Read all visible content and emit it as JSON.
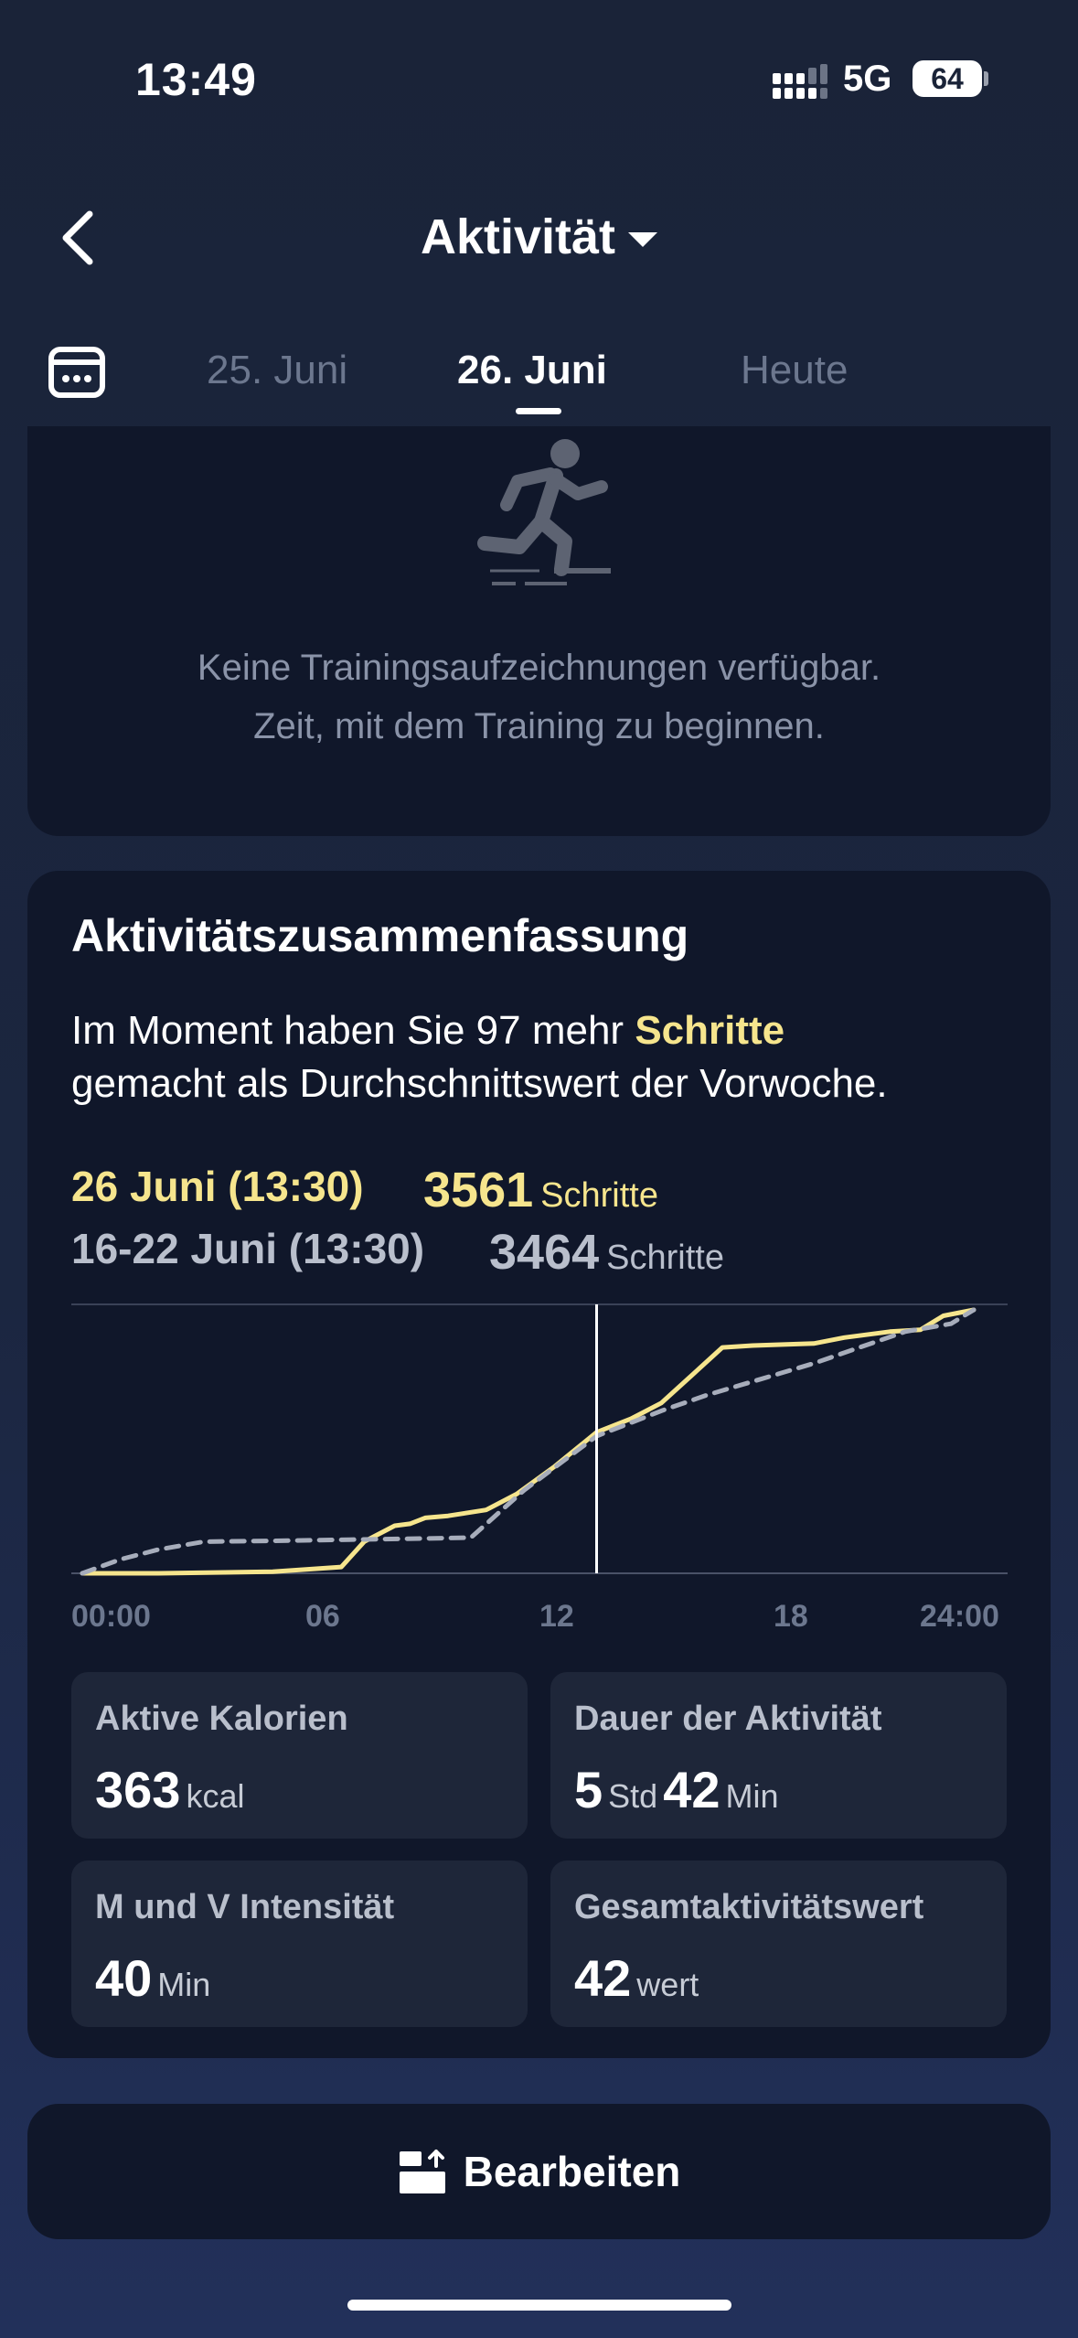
{
  "status_bar": {
    "time": "13:49",
    "network": "5G",
    "battery": "64"
  },
  "header": {
    "title": "Aktivität"
  },
  "date_tabs": [
    {
      "label": "25. Juni",
      "active": false
    },
    {
      "label": "26. Juni",
      "active": true
    },
    {
      "label": "Heute",
      "active": false
    }
  ],
  "training": {
    "empty_line1": "Keine Trainingsaufzeichnungen verfügbar.",
    "empty_line2": "Zeit, mit dem Training zu beginnen."
  },
  "summary": {
    "title": "Aktivitätszusammenfassung",
    "text_before": "Im Moment haben Sie 97 mehr ",
    "text_highlight": "Schritte",
    "text_line2": "gemacht als Durchschnittswert der Vorwoche.",
    "today_label": "26 Juni (13:30)",
    "today_steps": "3561",
    "week_label": "16-22 Juni (13:30)",
    "week_steps": "3464",
    "steps_unit": "Schritte"
  },
  "chart_data": {
    "type": "line",
    "x_ticks": [
      "00:00",
      "06",
      "12",
      "18",
      "24:00"
    ],
    "xlim": [
      0,
      24
    ],
    "marker_x": 13.5,
    "series": [
      {
        "name": "26 Juni (13:30)",
        "color": "#f6e58d",
        "style": "solid",
        "points": [
          [
            0,
            0
          ],
          [
            2,
            0
          ],
          [
            5,
            40
          ],
          [
            6.8,
            160
          ],
          [
            7.4,
            800
          ],
          [
            8.2,
            1200
          ],
          [
            8.6,
            1250
          ],
          [
            9.0,
            1400
          ],
          [
            9.6,
            1450
          ],
          [
            10.6,
            1600
          ],
          [
            11.4,
            2000
          ],
          [
            12.4,
            2700
          ],
          [
            13.5,
            3561
          ],
          [
            14.4,
            3900
          ],
          [
            15.2,
            4300
          ],
          [
            16.0,
            5000
          ],
          [
            16.8,
            5700
          ],
          [
            17.6,
            5750
          ],
          [
            19.2,
            5800
          ],
          [
            20.0,
            5950
          ],
          [
            21.2,
            6100
          ],
          [
            22.0,
            6150
          ],
          [
            22.6,
            6500
          ],
          [
            23.4,
            6650
          ]
        ]
      },
      {
        "name": "16-22 Juni (13:30)",
        "color": "#a7adbb",
        "style": "dashed",
        "points": [
          [
            0,
            0
          ],
          [
            1,
            350
          ],
          [
            2,
            600
          ],
          [
            3.2,
            800
          ],
          [
            5,
            820
          ],
          [
            7,
            850
          ],
          [
            9,
            880
          ],
          [
            10.2,
            900
          ],
          [
            11.6,
            2100
          ],
          [
            13.5,
            3464
          ],
          [
            15.2,
            4100
          ],
          [
            16.4,
            4500
          ],
          [
            17.8,
            4900
          ],
          [
            19.2,
            5300
          ],
          [
            20.4,
            5700
          ],
          [
            21.6,
            6100
          ],
          [
            22.8,
            6300
          ],
          [
            23.4,
            6650
          ]
        ]
      }
    ]
  },
  "stats": [
    {
      "label": "Aktive Kalorien",
      "value": "363",
      "unit": "kcal"
    },
    {
      "label": "Dauer der Aktivität",
      "value": "5",
      "unit": "Std",
      "value2": "42",
      "unit2": "Min"
    },
    {
      "label": "M und V Intensität",
      "value": "40",
      "unit": "Min"
    },
    {
      "label": "Gesamtaktivitätswert",
      "value": "42",
      "unit": "wert"
    }
  ],
  "edit_button": {
    "label": "Bearbeiten"
  }
}
